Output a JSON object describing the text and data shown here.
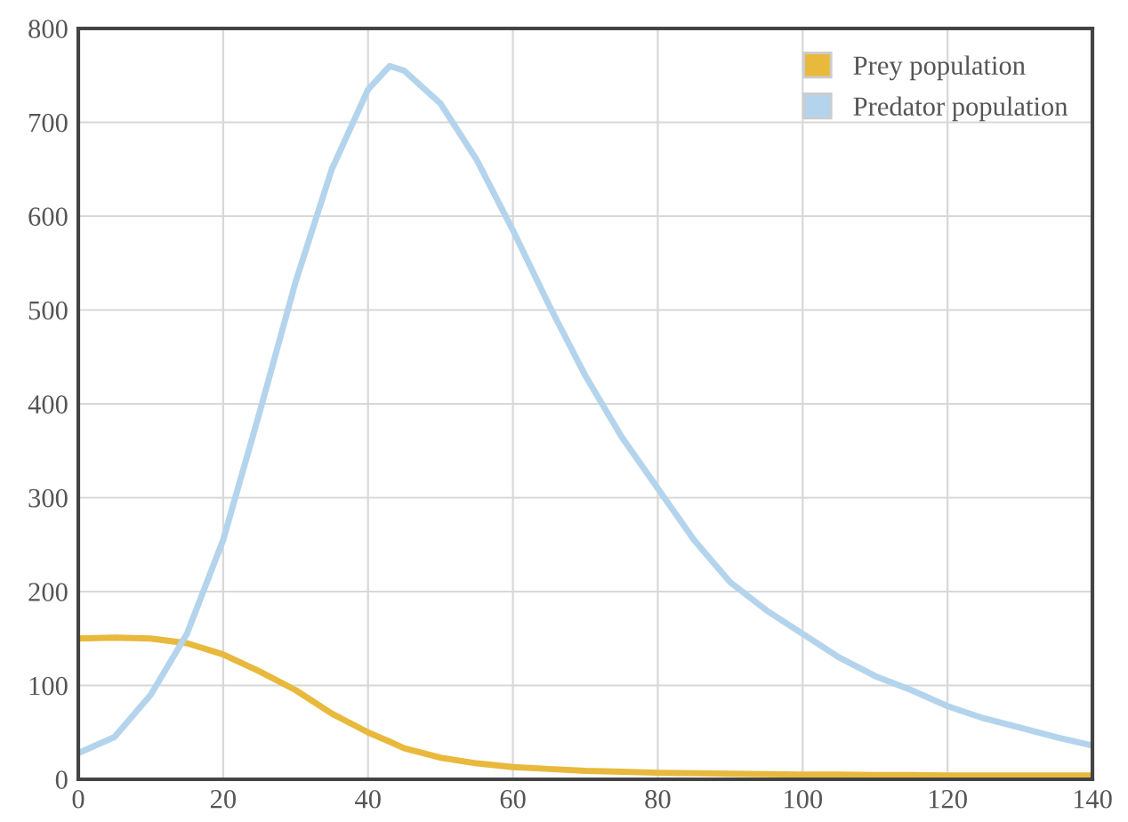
{
  "chart_data": {
    "type": "line",
    "x": [
      0,
      5,
      10,
      15,
      20,
      25,
      30,
      35,
      40,
      43,
      45,
      50,
      55,
      60,
      65,
      70,
      75,
      80,
      85,
      90,
      95,
      100,
      105,
      110,
      115,
      120,
      125,
      130,
      135,
      140
    ],
    "series": [
      {
        "name": "Prey population",
        "color": "#e8b93c",
        "values": [
          150,
          151,
          150,
          145,
          133,
          115,
          95,
          70,
          50,
          40,
          33,
          23,
          17,
          13,
          11,
          9,
          8,
          7,
          6.5,
          6,
          5.5,
          5,
          5,
          4.5,
          4.5,
          4,
          4,
          4,
          4,
          4
        ]
      },
      {
        "name": "Predator population",
        "color": "#b3d4ec",
        "values": [
          28,
          45,
          90,
          155,
          255,
          390,
          530,
          650,
          735,
          760,
          755,
          720,
          660,
          585,
          505,
          430,
          365,
          310,
          255,
          210,
          180,
          155,
          130,
          110,
          95,
          78,
          65,
          55,
          45,
          36
        ]
      }
    ],
    "xlim": [
      0,
      140
    ],
    "xticks": [
      0,
      20,
      40,
      60,
      80,
      100,
      120,
      140
    ],
    "ylim": [
      0,
      800
    ],
    "yticks": [
      0,
      100,
      200,
      300,
      400,
      500,
      600,
      700,
      800
    ],
    "grid": true,
    "legend": "top right"
  }
}
